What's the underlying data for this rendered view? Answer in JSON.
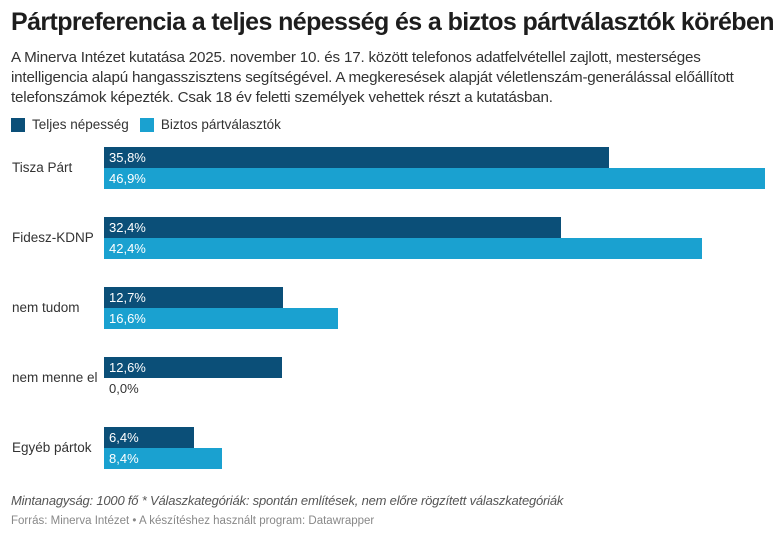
{
  "chart_data": {
    "type": "bar",
    "orientation": "horizontal",
    "title": "Pártpreferencia a teljes népesség és a biztos pártválasztók körében",
    "subtitle": "A Minerva Intézet kutatása 2025. november 10. és 17. között telefonos adatfelvétellel zajlott, mesterséges intelligencia alapú hangasszisztens segítségével. A megkeresések alapját véletlenszám-generálással előállított telefonszámok képezték. Csak 18 év feletti személyek vehettek részt a kutatásban.",
    "categories": [
      "Tisza Párt",
      "Fidesz-KDNP",
      "nem tudom",
      "nem menne el",
      "Egyéb pártok"
    ],
    "series": [
      {
        "name": "Teljes népesség",
        "color": "#0b4f78",
        "values": [
          35.8,
          32.4,
          12.7,
          12.6,
          6.4
        ],
        "labels": [
          "35,8%",
          "32,4%",
          "12,7%",
          "12,6%",
          "6,4%"
        ]
      },
      {
        "name": "Biztos pártválasztók",
        "color": "#1aa1d0",
        "values": [
          46.9,
          42.4,
          16.6,
          0.0,
          8.4
        ],
        "labels": [
          "46,9%",
          "42,4%",
          "16,6%",
          "0,0%",
          "8,4%"
        ]
      }
    ],
    "xlim": [
      0,
      46.9
    ],
    "grid": false,
    "legend": "top-left",
    "xlabel": "",
    "ylabel": ""
  },
  "notes": "Mintanagyság: 1000 fő * Válaszkategóriák: spontán említések, nem előre rögzített válaszkategóriák",
  "source": "Forrás: Minerva Intézet • A készítéshez használt program: Datawrapper"
}
